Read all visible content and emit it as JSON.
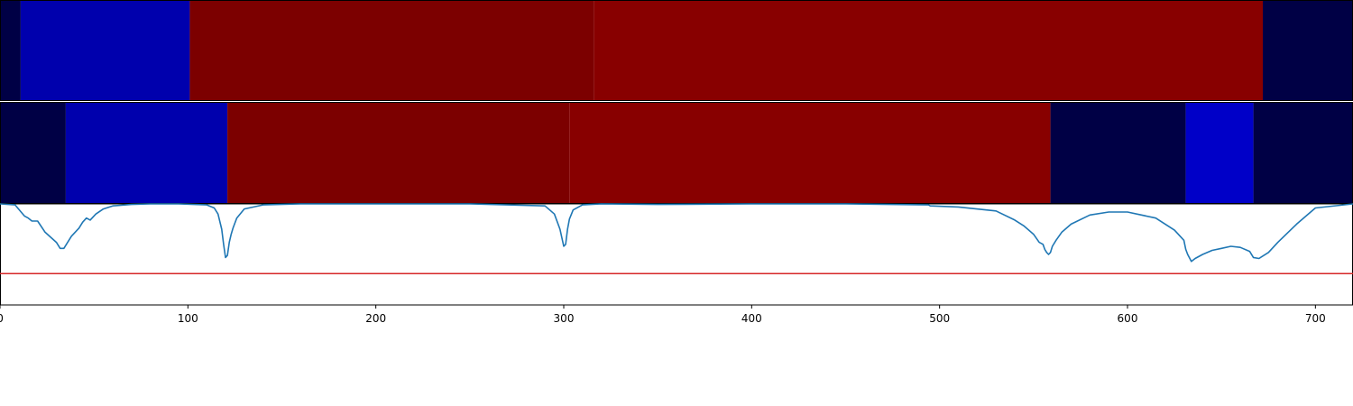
{
  "chart_data": [
    {
      "type": "heatmap",
      "x_range": [
        0,
        720
      ],
      "segments": [
        {
          "start": 0,
          "end": 11,
          "color": "#000045"
        },
        {
          "start": 11,
          "end": 101,
          "color": "#0000ad"
        },
        {
          "start": 101,
          "end": 316,
          "color": "#7c0000"
        },
        {
          "start": 316,
          "end": 672,
          "color": "#880000"
        },
        {
          "start": 672,
          "end": 720,
          "color": "#000045"
        }
      ]
    },
    {
      "type": "heatmap",
      "x_range": [
        0,
        720
      ],
      "segments": [
        {
          "start": 0,
          "end": 35,
          "color": "#000045"
        },
        {
          "start": 35,
          "end": 121,
          "color": "#0000ad"
        },
        {
          "start": 121,
          "end": 303,
          "color": "#7c0000"
        },
        {
          "start": 303,
          "end": 559,
          "color": "#880000"
        },
        {
          "start": 559,
          "end": 631,
          "color": "#000045"
        },
        {
          "start": 631,
          "end": 667,
          "color": "#0000c8"
        },
        {
          "start": 667,
          "end": 720,
          "color": "#000045"
        }
      ]
    },
    {
      "type": "line",
      "xlim": [
        0,
        720
      ],
      "ylim": [
        0,
        1
      ],
      "xticks": [
        0,
        100,
        200,
        300,
        400,
        500,
        600,
        700
      ],
      "threshold": {
        "value": 0.31,
        "color": "#d62728"
      },
      "series_color": "#1f77b4",
      "x": [
        0,
        8,
        13,
        15,
        17,
        20,
        24,
        30,
        32,
        34,
        36,
        38,
        40,
        42,
        44,
        46,
        48,
        51,
        55,
        60,
        70,
        80,
        95,
        110,
        114,
        116,
        118,
        119,
        120,
        121,
        122,
        123,
        124,
        126,
        130,
        140,
        160,
        200,
        250,
        290,
        295,
        298,
        300,
        301,
        302,
        303,
        305,
        310,
        320,
        350,
        400,
        450,
        494,
        495,
        510,
        530,
        540,
        545,
        550,
        553,
        555,
        556,
        557,
        558,
        559,
        560,
        562,
        565,
        570,
        580,
        590,
        600,
        615,
        625,
        630,
        631,
        632,
        634,
        636,
        640,
        645,
        650,
        655,
        660,
        665,
        667,
        670,
        675,
        680,
        690,
        700,
        720
      ],
      "y": [
        1.0,
        0.99,
        0.88,
        0.86,
        0.83,
        0.83,
        0.72,
        0.62,
        0.56,
        0.56,
        0.62,
        0.68,
        0.72,
        0.76,
        0.82,
        0.86,
        0.84,
        0.9,
        0.95,
        0.98,
        0.995,
        1.0,
        1.0,
        0.99,
        0.96,
        0.9,
        0.75,
        0.6,
        0.47,
        0.49,
        0.62,
        0.7,
        0.76,
        0.86,
        0.95,
        0.99,
        1.0,
        1.0,
        1.0,
        0.98,
        0.9,
        0.75,
        0.58,
        0.6,
        0.75,
        0.85,
        0.94,
        0.99,
        1.0,
        0.995,
        1.0,
        1.0,
        0.99,
        0.98,
        0.97,
        0.93,
        0.84,
        0.78,
        0.7,
        0.62,
        0.6,
        0.55,
        0.52,
        0.5,
        0.52,
        0.58,
        0.64,
        0.72,
        0.8,
        0.89,
        0.92,
        0.92,
        0.86,
        0.74,
        0.64,
        0.55,
        0.5,
        0.43,
        0.46,
        0.5,
        0.54,
        0.56,
        0.58,
        0.57,
        0.53,
        0.47,
        0.46,
        0.52,
        0.62,
        0.8,
        0.96,
        1.0
      ]
    }
  ]
}
